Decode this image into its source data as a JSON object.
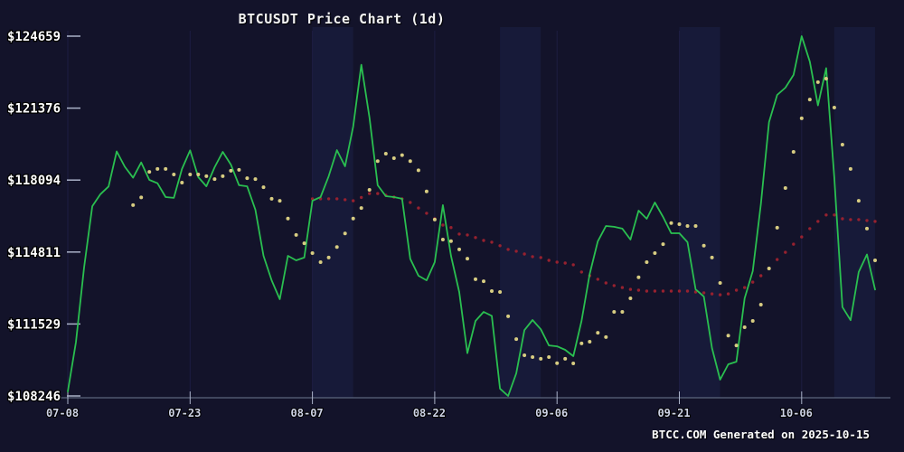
{
  "title": "BTCUSDT Price Chart (1d)",
  "footer": "BTCC.COM Generated on 2025-10-15",
  "colors": {
    "background": "#13132a",
    "band": "#1c2046",
    "gridline": "#1d1d42",
    "axis_line": "#6d7890",
    "tick_mark": "#aab2c8",
    "y_label": "#ffffff",
    "x_label": "#ced3e6",
    "price_line": "#2abf50",
    "ma_short_dot": "#d8cd82",
    "ma_long_dot": "#96212f"
  },
  "chart_data": {
    "type": "line",
    "title": "BTCUSDT Price Chart (1d)",
    "xlabel": "",
    "ylabel": "",
    "grid": "faint vertical bands only",
    "legend": "none",
    "x_axis": {
      "tick_labels": [
        "07-08",
        "07-23",
        "08-07",
        "08-22",
        "09-06",
        "09-21",
        "10-06"
      ],
      "tick_days": [
        0,
        15,
        30,
        45,
        60,
        75,
        90
      ],
      "days_total": 100
    },
    "y_axis": {
      "min": 108246,
      "max": 124659,
      "tick_values": [
        108246,
        111529,
        114811,
        118094,
        121376,
        124659
      ],
      "tick_labels": [
        "$108246",
        "$111529",
        "$114811",
        "$118094",
        "$121376",
        "$124659"
      ]
    },
    "background_bands_days": [
      [
        30,
        35
      ],
      [
        53,
        58
      ],
      [
        75,
        80
      ],
      [
        94,
        99
      ]
    ],
    "series": [
      {
        "name": "price",
        "label": "BTCUSDT daily close",
        "style": "line",
        "color": "#2abf50",
        "start_day": 0,
        "values": [
          108450,
          110700,
          114100,
          116900,
          117450,
          117800,
          119400,
          118700,
          118200,
          118900,
          118100,
          117950,
          117320,
          117280,
          118600,
          119450,
          118230,
          117810,
          118680,
          119380,
          118800,
          117860,
          117810,
          116740,
          114640,
          113520,
          112660,
          114640,
          114430,
          114560,
          117150,
          117320,
          118270,
          119460,
          118720,
          120540,
          123350,
          120950,
          117860,
          117360,
          117320,
          117240,
          114500,
          113730,
          113520,
          114350,
          116950,
          114640,
          112990,
          110200,
          111670,
          112080,
          111900,
          108580,
          108246,
          109280,
          111250,
          111710,
          111290,
          110550,
          110510,
          110350,
          110060,
          111670,
          113810,
          115300,
          116000,
          115960,
          115880,
          115380,
          116700,
          116330,
          117070,
          116410,
          115670,
          115670,
          115260,
          113110,
          112780,
          110430,
          108990,
          109690,
          109810,
          112700,
          113940,
          117000,
          120740,
          121980,
          122310,
          122890,
          124659,
          123500,
          121500,
          123200,
          118200,
          112300,
          111700,
          113900,
          114700,
          113100
        ]
      },
      {
        "name": "ma_short",
        "label": "short moving average (yellow dots)",
        "style": "dots",
        "color": "#d8cd82",
        "start_day": 8,
        "values": [
          116950,
          117300,
          118470,
          118600,
          118600,
          118350,
          117980,
          118350,
          118350,
          118270,
          118140,
          118270,
          118520,
          118560,
          118180,
          118140,
          117770,
          117240,
          117150,
          116340,
          115590,
          115210,
          114760,
          114350,
          114560,
          115040,
          115660,
          116340,
          116820,
          117650,
          118960,
          119300,
          119090,
          119230,
          118960,
          118540,
          117580,
          116290,
          115380,
          115310,
          114930,
          114510,
          113570,
          113480,
          113030,
          112990,
          111880,
          110840,
          110100,
          110020,
          109940,
          110020,
          109740,
          109940,
          109730,
          110640,
          110720,
          111130,
          110930,
          112080,
          112080,
          112700,
          113660,
          114350,
          114760,
          115170,
          116130,
          116080,
          116000,
          116000,
          115100,
          114560,
          113400,
          111000,
          110550,
          111380,
          111670,
          112410,
          114060,
          115920,
          117730,
          119380,
          120910,
          121770,
          122560,
          122720,
          121400,
          119710,
          118600,
          117150,
          115880,
          114430
        ]
      },
      {
        "name": "ma_long",
        "label": "long moving average (red dots)",
        "style": "dots",
        "color": "#96212f",
        "start_day": 30,
        "values": [
          117240,
          117240,
          117240,
          117240,
          117200,
          117150,
          117300,
          117480,
          117480,
          117400,
          117320,
          117240,
          117070,
          116820,
          116580,
          116330,
          116040,
          115930,
          115630,
          115590,
          115470,
          115340,
          115260,
          115100,
          114930,
          114850,
          114720,
          114600,
          114560,
          114430,
          114350,
          114310,
          114230,
          113900,
          113730,
          113570,
          113400,
          113280,
          113190,
          113110,
          113070,
          113030,
          113030,
          113030,
          113030,
          113030,
          113030,
          112990,
          112950,
          112900,
          112860,
          112900,
          113070,
          113190,
          113440,
          113730,
          114060,
          114470,
          114800,
          115170,
          115500,
          115880,
          116210,
          116500,
          116500,
          116330,
          116290,
          116290,
          116250,
          116210
        ]
      }
    ]
  }
}
